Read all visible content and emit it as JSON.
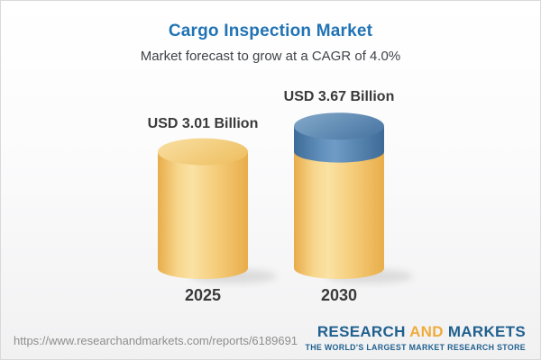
{
  "header": {
    "title": "Cargo Inspection Market",
    "subtitle": "Market forecast to grow at a CAGR of 4.0%"
  },
  "chart_data": {
    "type": "bar",
    "style": "3d-cylinder",
    "title": "Cargo Inspection Market",
    "subtitle": "Market forecast to grow at a CAGR of 4.0%",
    "unit": "USD Billion",
    "cagr_percent": 4.0,
    "categories": [
      "2025",
      "2030"
    ],
    "values": [
      3.01,
      3.67
    ],
    "value_labels": [
      "USD 3.01 Billion",
      "USD 3.67 Billion"
    ],
    "legend": "none",
    "grid": false,
    "bars": [
      {
        "category": "2025",
        "value": 3.01,
        "value_label": "USD 3.01 Billion",
        "segments": [
          {
            "value": 3.01,
            "color": "gold"
          }
        ]
      },
      {
        "category": "2030",
        "value": 3.67,
        "value_label": "USD 3.67 Billion",
        "segments": [
          {
            "value": 3.01,
            "color": "gold"
          },
          {
            "value": 0.66,
            "color": "blue"
          }
        ]
      }
    ],
    "colors": {
      "gold": "#f2c567",
      "gold_highlight": "#fae2a4",
      "gold_edge": "#e9ad4a",
      "blue": "#4e7fac",
      "blue_highlight": "#6e9cc6",
      "blue_edge": "#3e6b98",
      "title_blue": "#2173b4",
      "label_gray": "#3a3a3a"
    }
  },
  "footer": {
    "url": "https://www.researchandmarkets.com/reports/6189691",
    "logo": {
      "part1": "RESEARCH",
      "part2": "AND",
      "part3": "MARKETS",
      "tagline": "THE WORLD'S LARGEST MARKET RESEARCH STORE",
      "navy": "#21618f",
      "gold": "#efac3c"
    }
  }
}
